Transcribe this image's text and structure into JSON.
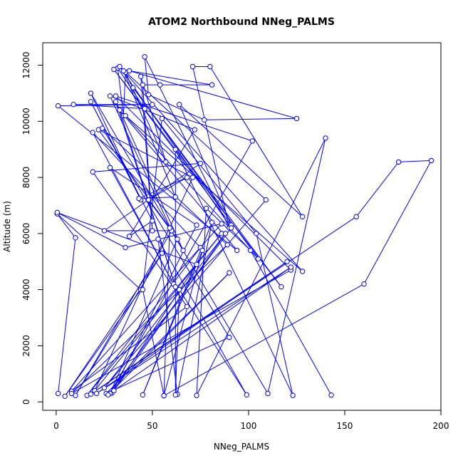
{
  "chart_data": {
    "type": "scatter",
    "title": "ATOM2 Northbound NNeg_PALMS",
    "xlabel": "NNeg_PALMS",
    "ylabel": "Altitude (m)",
    "xlim": [
      -7,
      200
    ],
    "ylim": [
      -300,
      12800
    ],
    "xticks": [
      0,
      50,
      100,
      150,
      200
    ],
    "yticks": [
      0,
      2000,
      4000,
      6000,
      8000,
      10000,
      12000
    ],
    "grid": false,
    "legend": "none",
    "style": "connected points (line with open circle markers)",
    "color": "#0000ff",
    "series": [
      {
        "points": [
          [
            1,
            300
          ],
          [
            10,
            5850
          ],
          [
            0.5,
            6700
          ],
          [
            44,
            4000
          ],
          [
            4.5,
            200
          ],
          [
            55,
            5300
          ],
          [
            10,
            230
          ],
          [
            60,
            6100
          ],
          [
            25,
            6100
          ],
          [
            75,
            8500
          ],
          [
            19,
            8200
          ],
          [
            68,
            3400
          ],
          [
            8,
            380
          ],
          [
            86,
            6350
          ],
          [
            36,
            5500
          ],
          [
            0.5,
            6750
          ],
          [
            73,
            4900
          ],
          [
            29,
            320
          ],
          [
            73,
            6300
          ],
          [
            28,
            8350
          ],
          [
            61,
            4200
          ],
          [
            19,
            9600
          ],
          [
            75,
            5500
          ],
          [
            16,
            230
          ],
          [
            86,
            6000
          ],
          [
            20,
            400
          ],
          [
            71,
            8000
          ],
          [
            22,
            9700
          ],
          [
            60,
            6100
          ],
          [
            28,
            10900
          ],
          [
            72,
            9700
          ],
          [
            38,
            5900
          ],
          [
            50,
            6450
          ],
          [
            18,
            10700
          ],
          [
            44,
            7200
          ],
          [
            18,
            11000
          ],
          [
            66,
            5400
          ],
          [
            31,
            10700
          ],
          [
            62,
            4100
          ],
          [
            33,
            10400
          ],
          [
            94,
            5400
          ],
          [
            1,
            10550
          ],
          [
            50,
            10600
          ],
          [
            9,
            10600
          ],
          [
            46,
            10450
          ],
          [
            32,
            11900
          ],
          [
            35,
            10200
          ],
          [
            36,
            11750
          ],
          [
            57,
            8550
          ],
          [
            44,
            11600
          ],
          [
            50,
            6100
          ],
          [
            45,
            11300
          ],
          [
            54,
            11300
          ],
          [
            81,
            11300
          ],
          [
            38,
            11800
          ],
          [
            125,
            10100
          ],
          [
            77,
            10050
          ],
          [
            48,
            10950
          ],
          [
            46,
            12300
          ],
          [
            90,
            6200
          ],
          [
            71,
            11950
          ],
          [
            80,
            11950
          ],
          [
            128,
            6600
          ],
          [
            64,
            10600
          ],
          [
            91,
            6300
          ],
          [
            30,
            11850
          ],
          [
            117,
            4100
          ],
          [
            40,
            11200
          ],
          [
            105,
            5100
          ],
          [
            36,
            10200
          ],
          [
            128,
            4650
          ],
          [
            35,
            11800
          ],
          [
            62,
            7300
          ],
          [
            43,
            7250
          ],
          [
            68,
            8000
          ],
          [
            48,
            7200
          ],
          [
            63,
            5800
          ],
          [
            28,
            300
          ],
          [
            102,
            9300
          ],
          [
            31,
            10900
          ],
          [
            122,
            4700
          ],
          [
            8,
            300
          ],
          [
            89,
            5600
          ],
          [
            24,
            9750
          ],
          [
            90,
            2300
          ],
          [
            26,
            300
          ],
          [
            90,
            4600
          ],
          [
            27,
            250
          ],
          [
            91,
            6200
          ],
          [
            33,
            11950
          ],
          [
            109,
            7200
          ],
          [
            25,
            500
          ],
          [
            88,
            6000
          ],
          [
            30,
            400
          ],
          [
            122,
            4800
          ],
          [
            21,
            300
          ],
          [
            120,
            5000
          ],
          [
            18,
            280
          ],
          [
            156,
            6600
          ],
          [
            178,
            8550
          ],
          [
            195,
            8600
          ],
          [
            160,
            4200
          ],
          [
            56,
            220
          ],
          [
            76,
            5400
          ],
          [
            45,
            250
          ],
          [
            81,
            6400
          ],
          [
            63,
            270
          ],
          [
            53,
            5800
          ],
          [
            99,
            250
          ],
          [
            64,
            4000
          ],
          [
            62,
            250
          ],
          [
            62,
            9000
          ],
          [
            123,
            230
          ],
          [
            104,
            6000
          ],
          [
            55,
            10100
          ],
          [
            45,
            4000
          ],
          [
            56,
            220
          ],
          [
            59,
            6200
          ],
          [
            110,
            300
          ],
          [
            140,
            9400
          ],
          [
            73,
            230
          ],
          [
            78,
            6900
          ],
          [
            101,
            5400
          ],
          [
            143,
            240
          ]
        ]
      }
    ]
  }
}
